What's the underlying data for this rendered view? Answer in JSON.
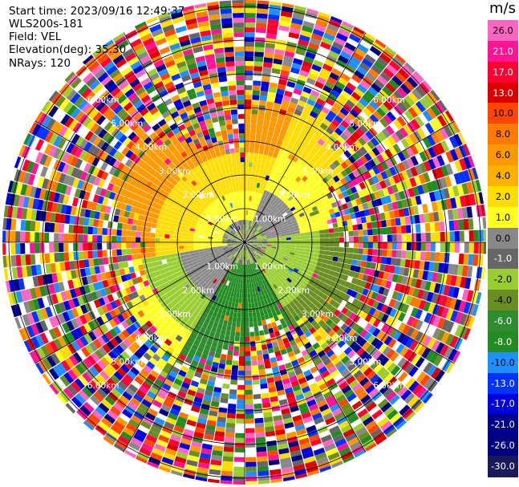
{
  "header": {
    "start_time": "Start time: 2023/09/16 12:49:37",
    "instrument": "WLS200s-181",
    "field": "Field: VEL",
    "elevation": "Elevation(deg): 35.30",
    "nrays": "NRays: 120"
  },
  "colorbar": {
    "title": "m/s",
    "ticks": [
      "26.0",
      "21.0",
      "17.0",
      "13.0",
      "10.0",
      "8.0",
      "6.0",
      "4.0",
      "2.0",
      "1.0",
      "0.0",
      "-1.0",
      "-2.0",
      "-4.0",
      "-6.0",
      "-8.0",
      "-10.0",
      "-13.0",
      "-17.0",
      "-21.0",
      "-26.0",
      "-30.0"
    ],
    "colors": [
      "#ff66c4",
      "#ff1493",
      "#ff0033",
      "#dd0000",
      "#ff4500",
      "#ff7a00",
      "#ff9900",
      "#ffb000",
      "#ffdd00",
      "#ffff22",
      "#888888",
      "#666666",
      "#9acd32",
      "#6b8e23",
      "#2e8b2e",
      "#228b22",
      "#1e90ff",
      "#0033ff",
      "#0000dd",
      "#00008b",
      "#000080",
      "#1a1a5a"
    ]
  },
  "rings": {
    "labels": [
      "1.00km",
      "2.00km",
      "3.00km",
      "4.00km",
      "5.00km",
      "6.00km"
    ]
  }
}
